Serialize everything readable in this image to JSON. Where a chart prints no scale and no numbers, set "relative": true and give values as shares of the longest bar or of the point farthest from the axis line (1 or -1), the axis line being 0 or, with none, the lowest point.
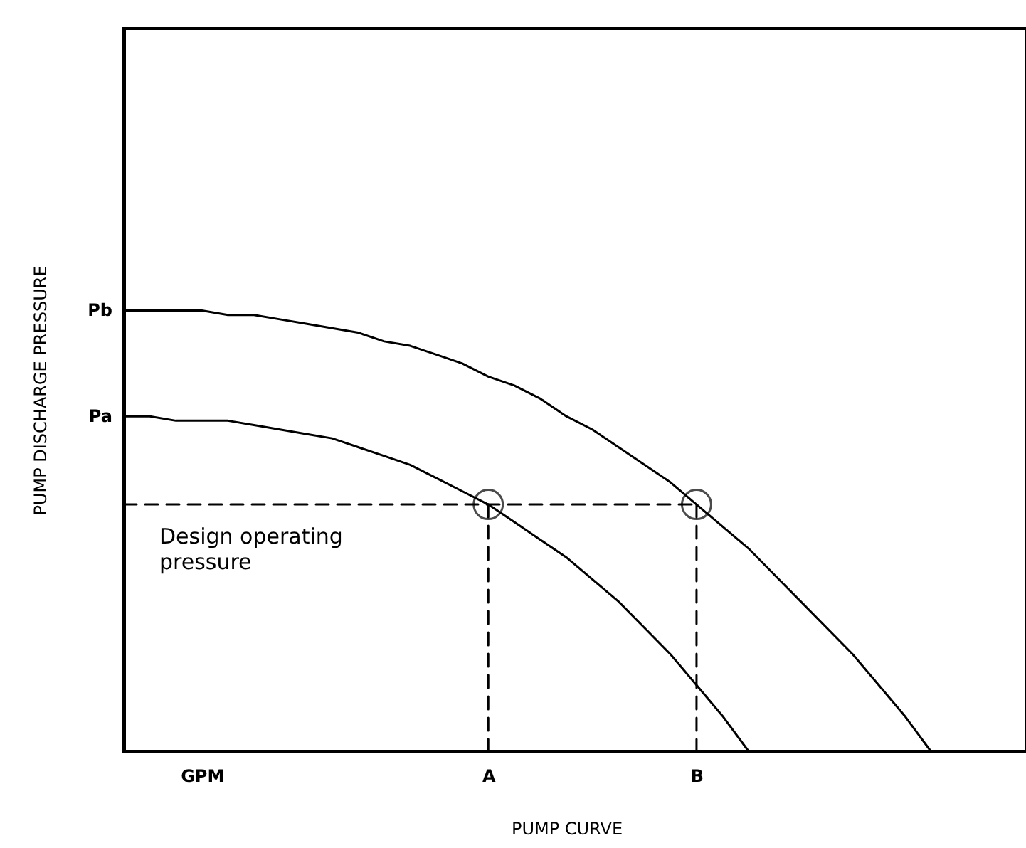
{
  "chart_data": {
    "type": "line",
    "relative": true,
    "xlabel": "PUMP CURVE",
    "ylabel": "PUMP DISCHARGE PRESSURE",
    "categories": [
      null,
      null,
      null,
      "GPM",
      null,
      null,
      null,
      null,
      null,
      null,
      null,
      null,
      null,
      null,
      "A",
      null,
      null,
      null,
      null,
      null,
      null,
      null,
      "B",
      null,
      null,
      null,
      null,
      null,
      null,
      null,
      null,
      null,
      null,
      null,
      null
    ],
    "series": [
      {
        "name": "Pb",
        "color": "#000000",
        "values": [
          1,
          1,
          1,
          1,
          0.99,
          0.99,
          0.98,
          0.97,
          0.96,
          0.95,
          0.93,
          0.92,
          0.9,
          0.88,
          0.85,
          0.83,
          0.8,
          0.76,
          0.73,
          0.69,
          0.65,
          0.61,
          0.56,
          0.51,
          0.46,
          0.4,
          0.34,
          0.28,
          0.22,
          0.15,
          0.08,
          0,
          null,
          null,
          null
        ]
      },
      {
        "name": "Pa",
        "color": "#000000",
        "values": [
          0.76,
          0.76,
          0.75,
          0.75,
          0.75,
          0.74,
          0.73,
          0.72,
          0.71,
          0.69,
          0.67,
          0.65,
          0.62,
          0.59,
          0.56,
          0.52,
          0.48,
          0.44,
          0.39,
          0.34,
          0.28,
          0.22,
          0.15,
          0.08,
          0,
          null,
          null,
          null,
          null,
          null,
          null,
          null,
          null,
          null,
          null
        ]
      },
      {
        "color": "#000000",
        "line_style": "dashed",
        "values": [
          0.56,
          0.56,
          0.56,
          0.56,
          0.56,
          0.56,
          0.56,
          0.56,
          0.56,
          0.56,
          0.56,
          0.56,
          0.56,
          0.56,
          0.56,
          0.56,
          0.56,
          0.56,
          0.56,
          0.56,
          0.56,
          0.56,
          0.56,
          null,
          null,
          null,
          null,
          null,
          null,
          null,
          null,
          null,
          null,
          null,
          null
        ]
      },
      {
        "color": "#000000",
        "line_style": "dashed",
        "x": [
          "A",
          "A"
        ],
        "values": [
          0.56,
          0
        ]
      },
      {
        "color": "#000000",
        "line_style": "dashed",
        "x": [
          "B",
          "B"
        ],
        "values": [
          0.56,
          0
        ]
      },
      {
        "type": "scatter",
        "color": "#000000",
        "marker": "circle",
        "x": [
          "A",
          "B"
        ],
        "values": [
          0.56,
          0.56
        ]
      }
    ],
    "annotations": [
      "Design operating pressure"
    ]
  }
}
